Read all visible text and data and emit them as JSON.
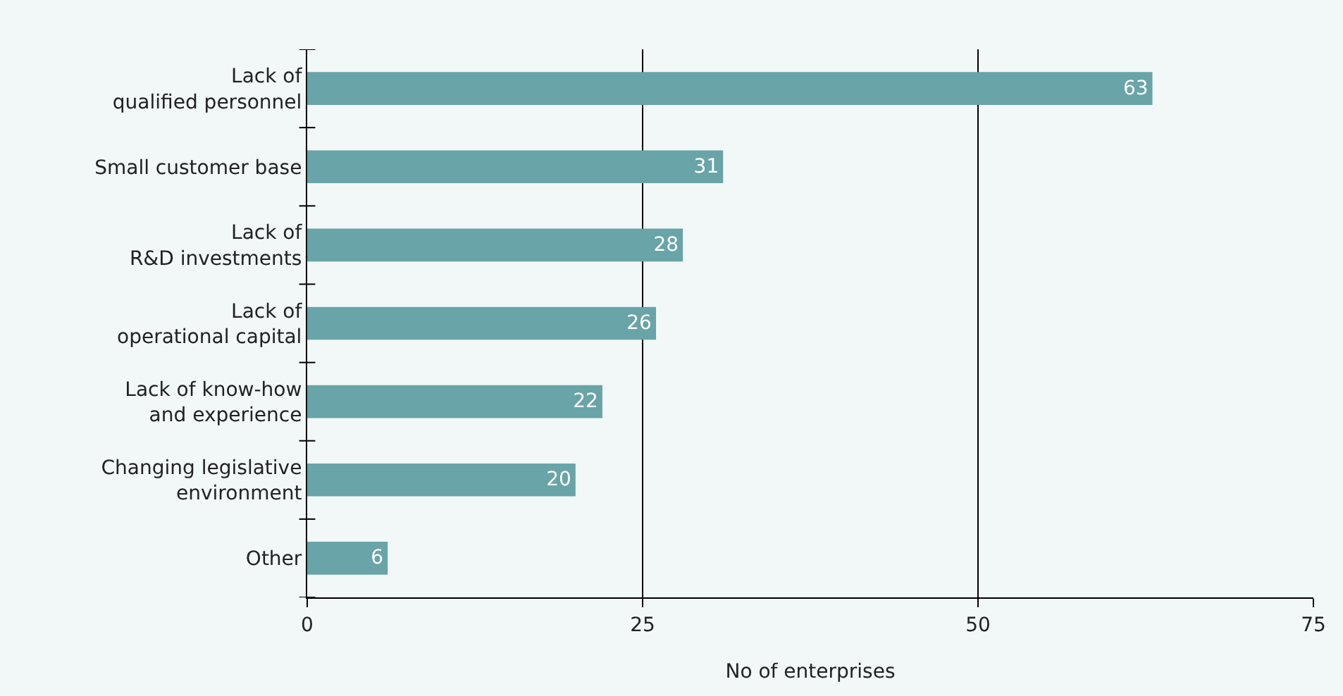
{
  "chart_data": {
    "type": "bar",
    "orientation": "horizontal",
    "xlabel": "No of enterprises",
    "categories": [
      "Lack of\nqualified personnel",
      "Small customer base",
      "Lack of\nR&D investments",
      "Lack of\noperational capital",
      "Lack of know-how\nand experience",
      "Changing legislative\nenvironment",
      "Other"
    ],
    "values": [
      63,
      31,
      28,
      26,
      22,
      20,
      6
    ],
    "color": "#68a4a8",
    "xlim": [
      0,
      75
    ],
    "xticks": [
      0,
      25,
      50,
      75
    ],
    "grid": "x",
    "data_labels": true
  }
}
